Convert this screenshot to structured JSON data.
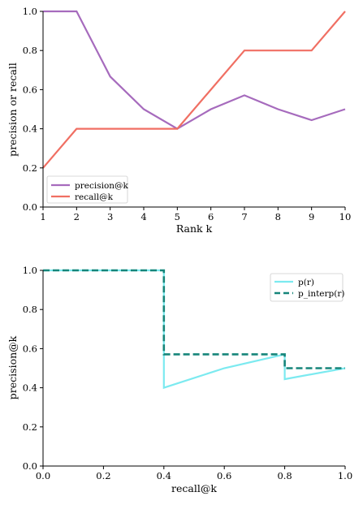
{
  "colors": {
    "precision": "#a66bbd",
    "recall": "#f06f63",
    "p_r": "#7ceaf0",
    "p_interp": "#16857a"
  },
  "chart_data": [
    {
      "type": "line",
      "x": [
        1,
        2,
        3,
        4,
        5,
        6,
        7,
        8,
        9,
        10
      ],
      "series": [
        {
          "name": "precision@k",
          "values": [
            1.0,
            1.0,
            0.667,
            0.5,
            0.4,
            0.5,
            0.571,
            0.5,
            0.444,
            0.5
          ],
          "color_key": "precision"
        },
        {
          "name": "recall@k",
          "values": [
            0.2,
            0.4,
            0.4,
            0.4,
            0.4,
            0.6,
            0.8,
            0.8,
            0.8,
            1.0
          ],
          "color_key": "recall"
        }
      ],
      "xlabel": "Rank k",
      "ylabel": "precision or recall",
      "xlim": [
        1,
        10
      ],
      "ylim": [
        0.0,
        1.0
      ],
      "xticks": [
        "1",
        "2",
        "3",
        "4",
        "5",
        "6",
        "7",
        "8",
        "9",
        "10"
      ],
      "yticks": [
        "0.0",
        "0.2",
        "0.4",
        "0.6",
        "0.8",
        "1.0"
      ],
      "grid": false,
      "legend_position": "lower-left"
    },
    {
      "type": "line",
      "series": [
        {
          "name": "p(r)",
          "style": "solid",
          "color_key": "p_r",
          "points": [
            [
              0.0,
              1.0
            ],
            [
              0.2,
              1.0
            ],
            [
              0.4,
              1.0
            ],
            [
              0.4,
              0.4
            ],
            [
              0.6,
              0.5
            ],
            [
              0.8,
              0.571
            ],
            [
              0.8,
              0.444
            ],
            [
              1.0,
              0.5
            ]
          ]
        },
        {
          "name": "p_interp(r)",
          "style": "dashed",
          "color_key": "p_interp",
          "points": [
            [
              0.0,
              1.0
            ],
            [
              0.4,
              1.0
            ],
            [
              0.4,
              0.571
            ],
            [
              0.8,
              0.571
            ],
            [
              0.8,
              0.5
            ],
            [
              1.0,
              0.5
            ]
          ]
        }
      ],
      "xlabel": "recall@k",
      "ylabel": "precision@k",
      "xlim": [
        0.0,
        1.0
      ],
      "ylim": [
        0.0,
        1.0
      ],
      "xticks": [
        "0.0",
        "0.2",
        "0.4",
        "0.6",
        "0.8",
        "1.0"
      ],
      "yticks": [
        "0.0",
        "0.2",
        "0.4",
        "0.6",
        "0.8",
        "1.0"
      ],
      "grid": false,
      "legend_position": "top-right"
    }
  ]
}
